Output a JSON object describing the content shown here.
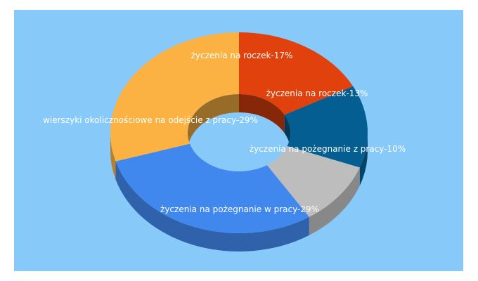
{
  "chart_data": {
    "type": "pie",
    "style": "3d-donut",
    "background": "#87cafa",
    "legend": "none",
    "slices": [
      {
        "label": "życzenia na roczek",
        "value": 17,
        "text": "życzenia na roczek-17%",
        "color": "#e0410d"
      },
      {
        "label": "życzenia na roczek",
        "value": 13,
        "text": "życzenia na roczek-13%",
        "color": "#045e92"
      },
      {
        "label": "życzenia na pożegnanie z pracy",
        "value": 10,
        "text": "życzenia na pożegnanie z pracy-10%",
        "color": "#bdbdbd"
      },
      {
        "label": "życzenia na pożegnanie w pracy",
        "value": 29,
        "text": "życzenia na pożegnanie w pracy-29%",
        "color": "#4188ee"
      },
      {
        "label": "wierszyki okolicznościowe na odejście z pracy",
        "value": 29,
        "text": "wierszyki okolicznościowe na odejście z pracy-29%",
        "color": "#fbb243"
      }
    ]
  }
}
